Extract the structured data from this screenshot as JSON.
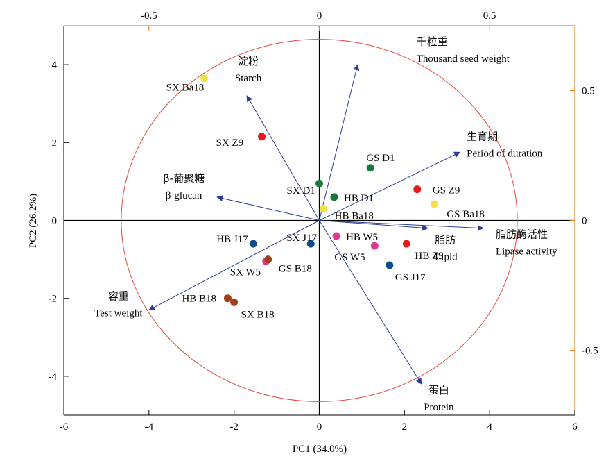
{
  "chart_data": {
    "type": "scatter",
    "subtype": "biplot",
    "xlabel": "PC1 (34.0%)",
    "ylabel": "PC2 (26.2%)",
    "xlim": [
      -6,
      6
    ],
    "ylim": [
      -5,
      5
    ],
    "x_ticks": [
      -6,
      -4,
      -2,
      0,
      2,
      4,
      6
    ],
    "y_ticks": [
      -4,
      -2,
      0,
      2,
      4
    ],
    "loading_axis": {
      "top_lim": [
        -0.75,
        0.75
      ],
      "top_ticks": [
        -0.5,
        0,
        0.5
      ],
      "top_tick_labels": [
        "-0.5",
        "0",
        "0.5"
      ],
      "right_lim": [
        -0.75,
        0.75
      ],
      "right_ticks": [
        -0.5,
        0,
        0.5
      ],
      "right_tick_labels": [
        "-0.5",
        "0",
        "0.5"
      ],
      "color": "#f07f1e"
    },
    "circle": {
      "radius": 4.65,
      "color": "#e8463c"
    },
    "points": [
      {
        "label": "SX Ba18",
        "x": -2.7,
        "y": 3.65,
        "color": "#f2e24a"
      },
      {
        "label": "SX Z9",
        "x": -1.35,
        "y": 2.15,
        "color": "#e31a1c"
      },
      {
        "label": "SX D1",
        "x": 0.0,
        "y": 0.95,
        "color": "#187a3c"
      },
      {
        "label": "GS D1",
        "x": 1.2,
        "y": 1.35,
        "color": "#187a3c"
      },
      {
        "label": "HB D1",
        "x": 0.35,
        "y": 0.6,
        "color": "#187a3c"
      },
      {
        "label": "GS Z9",
        "x": 2.3,
        "y": 0.8,
        "color": "#e31a1c"
      },
      {
        "label": "GS Ba18",
        "x": 2.7,
        "y": 0.42,
        "color": "#f2e24a"
      },
      {
        "label": "HB Ba18",
        "x": 0.1,
        "y": 0.3,
        "color": "#f2e24a"
      },
      {
        "label": "HB J17",
        "x": -1.55,
        "y": -0.6,
        "color": "#0b4c8f"
      },
      {
        "label": "SX J17",
        "x": -0.2,
        "y": -0.6,
        "color": "#0b4c8f"
      },
      {
        "label": "HB W5",
        "x": 0.4,
        "y": -0.4,
        "color": "#e0388f"
      },
      {
        "label": "GS W5",
        "x": 1.3,
        "y": -0.65,
        "color": "#e0388f"
      },
      {
        "label": "HB Z9",
        "x": 2.05,
        "y": -0.6,
        "color": "#e31a1c"
      },
      {
        "label": "GS J17",
        "x": 1.65,
        "y": -1.15,
        "color": "#0b4c8f"
      },
      {
        "label": "SX W5",
        "x": -1.25,
        "y": -1.05,
        "color": "#e0388f"
      },
      {
        "label": "GS B18",
        "x": -1.2,
        "y": -1.0,
        "color": "#a0401a"
      },
      {
        "label": "HB B18",
        "x": -2.15,
        "y": -2.0,
        "color": "#a0401a"
      },
      {
        "label": "SX B18",
        "x": -2.0,
        "y": -2.1,
        "color": "#a0401a"
      }
    ],
    "vectors": [
      {
        "label_cn": "淀粉",
        "label_en": "Starch",
        "x": -1.7,
        "y": 3.2
      },
      {
        "label_cn": "千粒重",
        "label_en": "Thousand seed weight",
        "x": 0.9,
        "y": 4.0
      },
      {
        "label_cn": "生育期",
        "label_en": "Period of duration",
        "x": 3.3,
        "y": 1.75
      },
      {
        "label_cn": "β-葡聚糖",
        "label_en": "β-glucan",
        "x": -2.4,
        "y": 0.6
      },
      {
        "label_cn": "脂肪",
        "label_en": "Lipid",
        "x": 2.55,
        "y": -0.2
      },
      {
        "label_cn": "脂肪酶活性",
        "label_en": "Lipase activity",
        "x": 3.85,
        "y": -0.2
      },
      {
        "label_cn": "容重",
        "label_en": "Test weight",
        "x": -4.0,
        "y": -2.3
      },
      {
        "label_cn": "蛋白",
        "label_en": "Protein",
        "x": 2.4,
        "y": -4.2
      }
    ],
    "vector_color": "#2b3d8f",
    "grid": false
  }
}
